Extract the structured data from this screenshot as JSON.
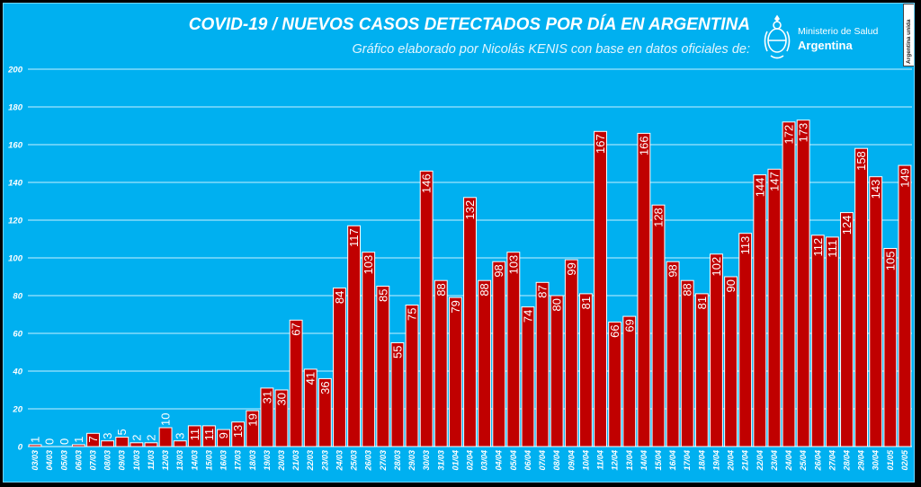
{
  "header": {
    "title": "COVID-19  /  NUEVOS CASOS DETECTADOS POR DÍA EN ARGENTINA",
    "subtitle": "Gráfico elaborado por Nicolás KENIS con base en datos oficiales de:"
  },
  "logo": {
    "ministry": "Ministerio de Salud",
    "country": "Argentina",
    "badge": "Argentina unida",
    "icon": "argentina-emblem-icon"
  },
  "colors": {
    "background": "#00B0F0",
    "bar": "#C00000",
    "bar_outline": "#ffffff",
    "label_on_bar": "#ffffff",
    "label_off_bar": "#ffffff",
    "grid": "#c8f0ff"
  },
  "chart_data": {
    "type": "bar",
    "title": "COVID-19  /  NUEVOS CASOS DETECTADOS POR DÍA EN ARGENTINA",
    "subtitle": "Gráfico elaborado por Nicolás KENIS con base en datos oficiales de:",
    "xlabel": "",
    "ylabel": "",
    "ylim": [
      0,
      200
    ],
    "yticks": [
      0,
      20,
      40,
      60,
      80,
      100,
      120,
      140,
      160,
      180,
      200
    ],
    "grid": true,
    "legend": "none",
    "categories": [
      "03/03",
      "04/03",
      "05/03",
      "06/03",
      "07/03",
      "08/03",
      "09/03",
      "10/03",
      "11/03",
      "12/03",
      "13/03",
      "14/03",
      "15/03",
      "16/03",
      "17/03",
      "18/03",
      "19/03",
      "20/03",
      "21/03",
      "22/03",
      "23/03",
      "24/03",
      "25/03",
      "26/03",
      "27/03",
      "28/03",
      "29/03",
      "30/03",
      "31/03",
      "01/04",
      "02/04",
      "03/04",
      "04/04",
      "05/04",
      "06/04",
      "07/04",
      "08/04",
      "09/04",
      "10/04",
      "11/04",
      "12/04",
      "13/04",
      "14/04",
      "15/04",
      "16/04",
      "17/04",
      "18/04",
      "19/04",
      "20/04",
      "21/04",
      "22/04",
      "23/04",
      "24/04",
      "25/04",
      "26/04",
      "27/04",
      "28/04",
      "29/04",
      "30/04",
      "01/05",
      "02/05"
    ],
    "values": [
      1,
      0,
      0,
      1,
      7,
      3,
      5,
      2,
      2,
      10,
      3,
      11,
      11,
      9,
      13,
      19,
      31,
      30,
      67,
      41,
      36,
      84,
      117,
      103,
      85,
      55,
      75,
      146,
      88,
      79,
      132,
      88,
      98,
      103,
      74,
      87,
      80,
      99,
      81,
      167,
      66,
      69,
      166,
      128,
      98,
      88,
      81,
      102,
      90,
      113,
      144,
      147,
      172,
      173,
      112,
      111,
      124,
      158,
      143,
      105,
      149
    ]
  }
}
